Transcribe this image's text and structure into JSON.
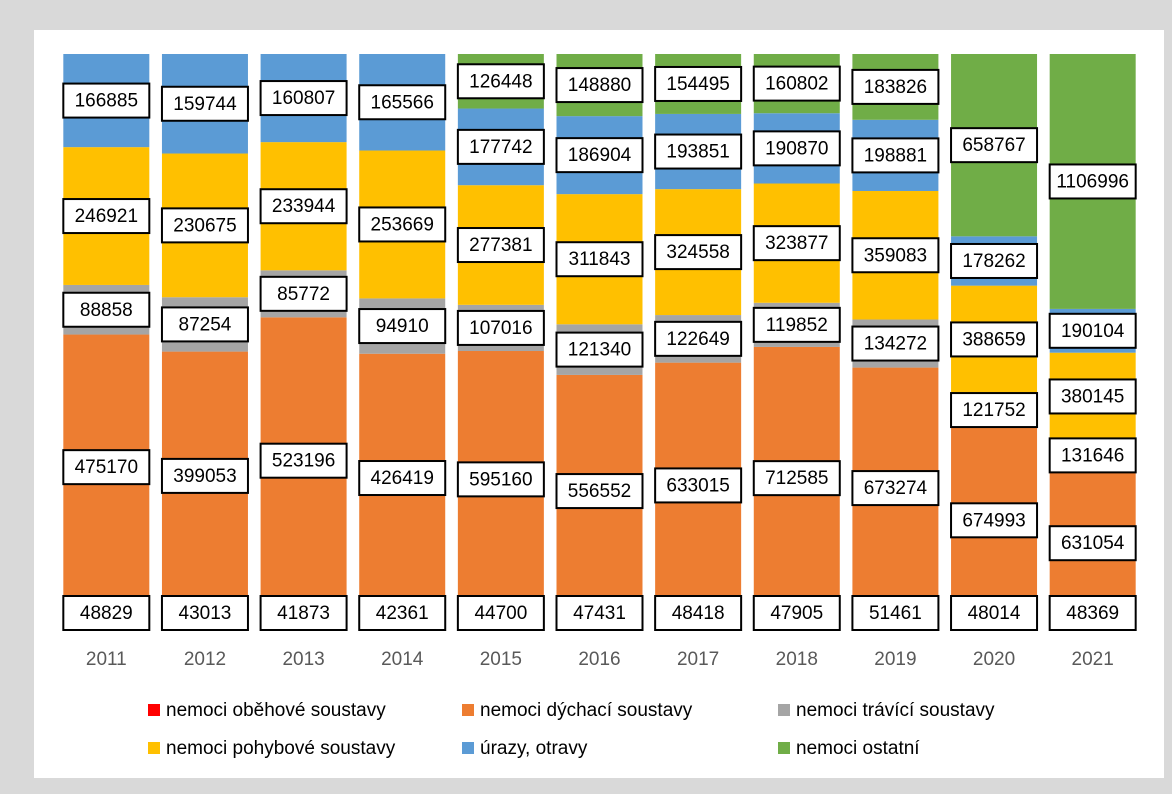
{
  "chart_data": {
    "type": "bar",
    "stacked": "percent",
    "categories": [
      "2011",
      "2012",
      "2013",
      "2014",
      "2015",
      "2016",
      "2017",
      "2018",
      "2019",
      "2020",
      "2021"
    ],
    "series": [
      {
        "name": "nemoci oběhové soustavy",
        "color": "#ff0000",
        "values": [
          48829,
          43013,
          41873,
          42361,
          44700,
          47431,
          48418,
          47905,
          51461,
          48014,
          48369
        ]
      },
      {
        "name": "nemoci dýchací soustavy",
        "color": "#ed7d31",
        "values": [
          475170,
          399053,
          523196,
          426419,
          595160,
          556552,
          633015,
          712585,
          673274,
          674993,
          631054
        ]
      },
      {
        "name": "nemoci trávící soustavy",
        "color": "#a5a5a5",
        "values": [
          88858,
          87254,
          85772,
          94910,
          107016,
          121340,
          122649,
          119852,
          134272,
          121752,
          131646
        ]
      },
      {
        "name": "nemoci pohybové soustavy",
        "color": "#ffc000",
        "values": [
          246921,
          230675,
          233944,
          253669,
          277381,
          311843,
          324558,
          323877,
          359083,
          388659,
          380145
        ]
      },
      {
        "name": "úrazy, otravy",
        "color": "#5b9bd5",
        "values": [
          166885,
          159744,
          160807,
          165566,
          177742,
          186904,
          193851,
          190870,
          198881,
          178262,
          190104
        ]
      },
      {
        "name": "nemoci ostatní",
        "color": "#70ad47",
        "values": [
          null,
          null,
          null,
          null,
          126448,
          148880,
          154495,
          160802,
          183826,
          658767,
          1106996
        ]
      }
    ],
    "legend": "bottom"
  }
}
